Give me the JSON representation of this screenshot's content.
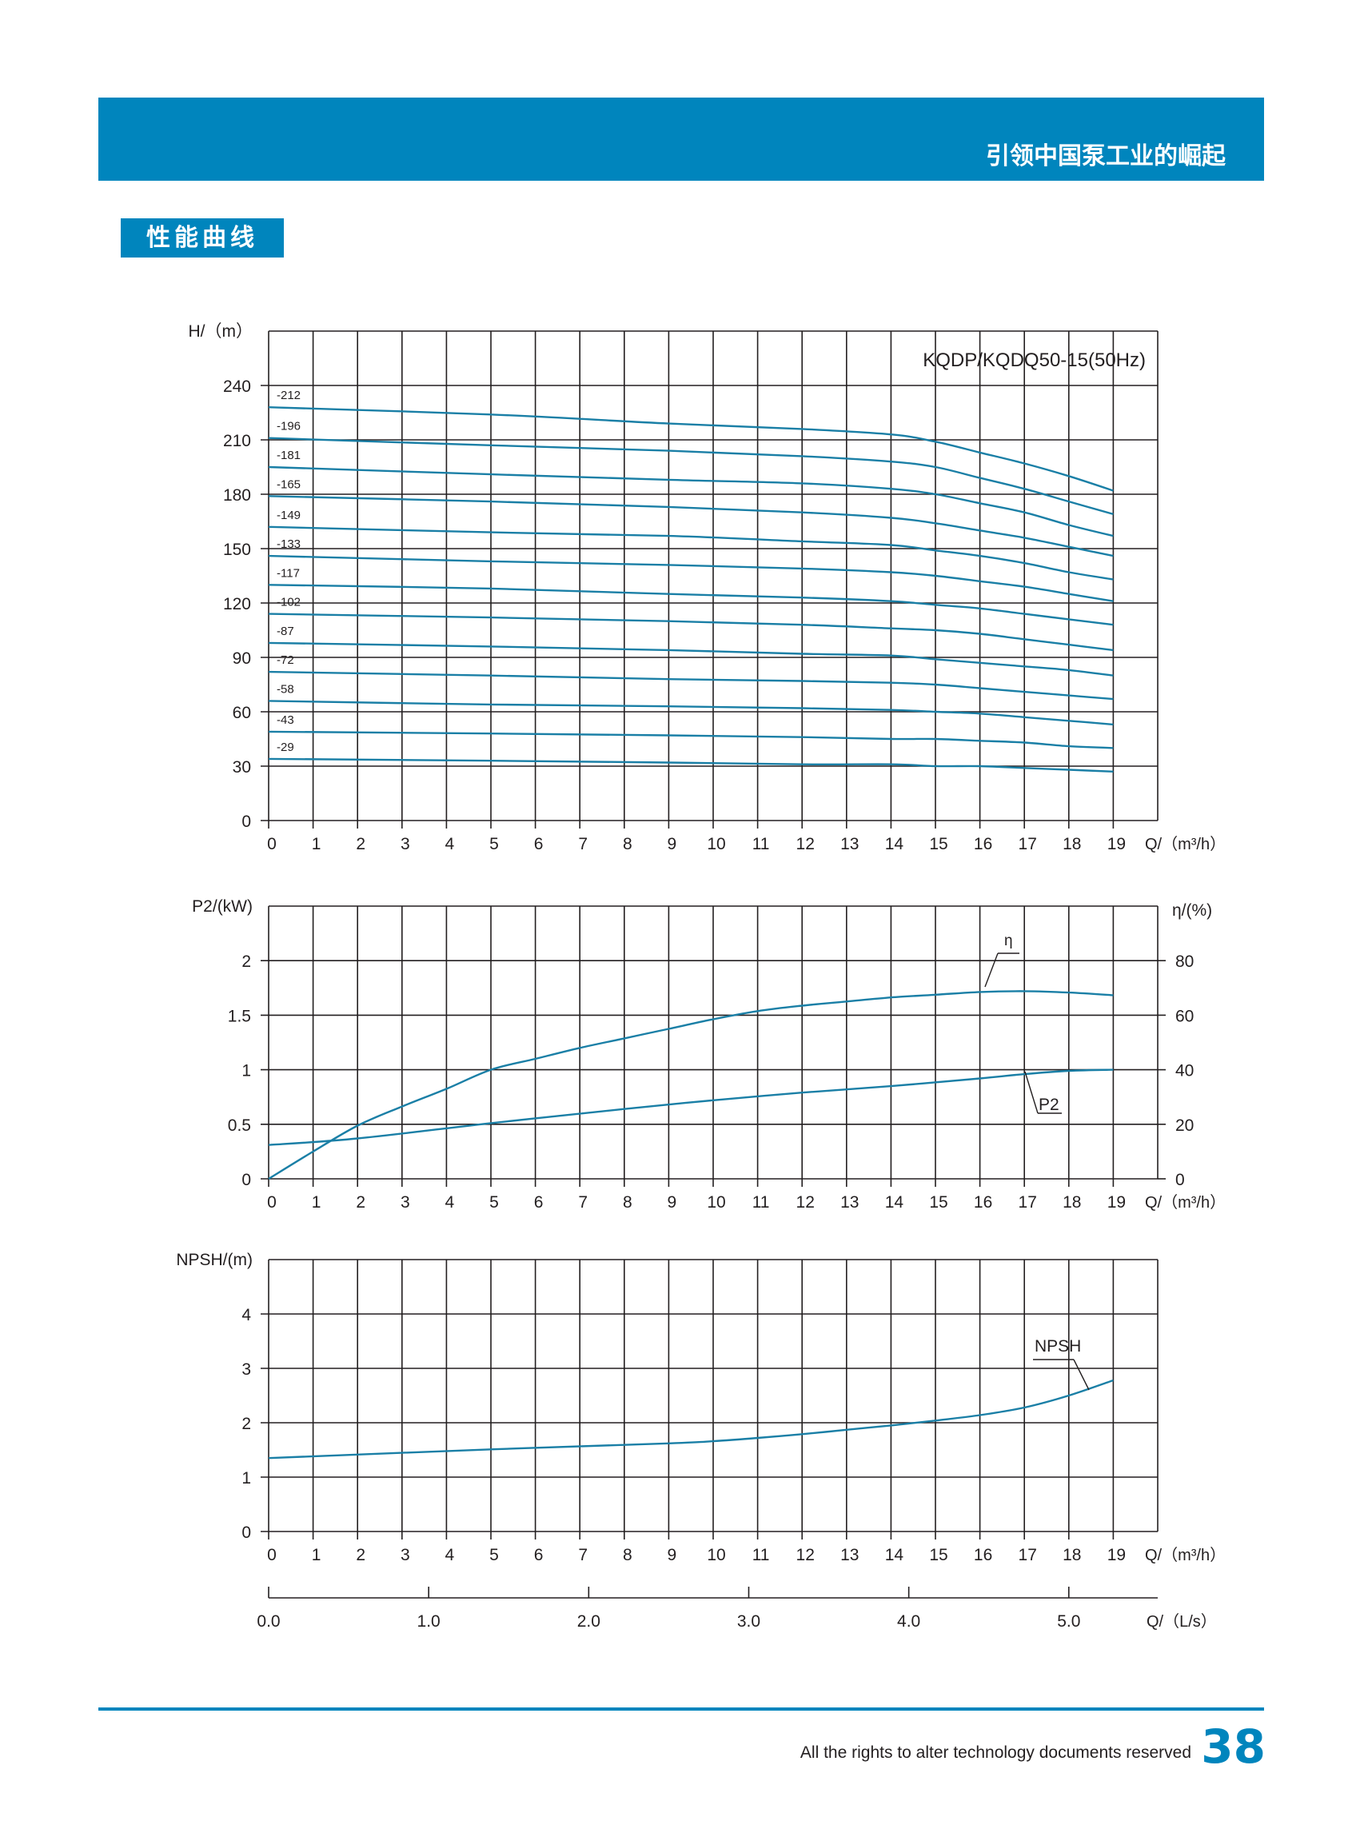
{
  "header": {
    "slogan": "引领中国泵工业的崛起",
    "section": "性能曲线"
  },
  "footer": {
    "note": "All the rights to alter technology documents reserved",
    "page": "38"
  },
  "colors": {
    "brand": "#0085bd",
    "curve": "#1a7fa6",
    "grid": "#231f20"
  },
  "chart_data": [
    {
      "type": "line",
      "name": "head",
      "title": "KQDP/KQDQ50-15(50Hz)",
      "ylabel": "H/（m）",
      "xlabel": "Q/（m³/h）",
      "xlim": [
        0,
        20
      ],
      "ylim": [
        0,
        270
      ],
      "xticks": [
        "0",
        "1",
        "2",
        "3",
        "4",
        "5",
        "6",
        "7",
        "8",
        "9",
        "10",
        "11",
        "12",
        "13",
        "14",
        "15",
        "16",
        "17",
        "18",
        "19"
      ],
      "yticks": [
        "0",
        "30",
        "60",
        "90",
        "120",
        "150",
        "180",
        "210",
        "240"
      ],
      "grid": true,
      "series": [
        {
          "name": "-212",
          "x": [
            0,
            5,
            9,
            12,
            14,
            15,
            16,
            17,
            18,
            19
          ],
          "y": [
            228,
            224,
            219,
            216,
            213,
            209,
            203,
            197,
            190,
            182
          ]
        },
        {
          "name": "-196",
          "x": [
            0,
            5,
            9,
            12,
            14,
            15,
            16,
            17,
            18,
            19
          ],
          "y": [
            211,
            207,
            204,
            201,
            198,
            195,
            189,
            183,
            176,
            169
          ]
        },
        {
          "name": "-181",
          "x": [
            0,
            5,
            9,
            12,
            14,
            15,
            16,
            17,
            18,
            19
          ],
          "y": [
            195,
            191,
            188,
            186,
            183,
            180,
            175,
            170,
            163,
            157
          ]
        },
        {
          "name": "-165",
          "x": [
            0,
            5,
            9,
            12,
            14,
            15,
            16,
            17,
            18,
            19
          ],
          "y": [
            179,
            176,
            173,
            170,
            167,
            164,
            160,
            156,
            151,
            146
          ]
        },
        {
          "name": "-149",
          "x": [
            0,
            5,
            9,
            12,
            14,
            15,
            16,
            17,
            18,
            19
          ],
          "y": [
            162,
            159,
            157,
            154,
            152,
            149,
            146,
            142,
            137,
            133
          ]
        },
        {
          "name": "-133",
          "x": [
            0,
            5,
            9,
            12,
            14,
            15,
            16,
            17,
            18,
            19
          ],
          "y": [
            146,
            143,
            141,
            139,
            137,
            135,
            132,
            129,
            125,
            121
          ]
        },
        {
          "name": "-117",
          "x": [
            0,
            5,
            9,
            12,
            14,
            15,
            16,
            17,
            18,
            19
          ],
          "y": [
            130,
            128,
            125,
            123,
            121,
            119,
            117,
            114,
            111,
            108
          ]
        },
        {
          "name": "-102",
          "x": [
            0,
            5,
            9,
            12,
            14,
            15,
            16,
            17,
            18,
            19
          ],
          "y": [
            114,
            112,
            110,
            108,
            106,
            105,
            103,
            100,
            97,
            94
          ]
        },
        {
          "name": "-87",
          "x": [
            0,
            5,
            9,
            12,
            14,
            15,
            16,
            17,
            18,
            19
          ],
          "y": [
            98,
            96,
            94,
            92,
            91,
            89,
            87,
            85,
            83,
            80
          ]
        },
        {
          "name": "-72",
          "x": [
            0,
            5,
            9,
            12,
            14,
            15,
            16,
            17,
            18,
            19
          ],
          "y": [
            82,
            80,
            78,
            77,
            76,
            75,
            73,
            71,
            69,
            67
          ]
        },
        {
          "name": "-58",
          "x": [
            0,
            5,
            9,
            12,
            14,
            15,
            16,
            17,
            18,
            19
          ],
          "y": [
            66,
            64,
            63,
            62,
            61,
            60,
            59,
            57,
            55,
            53
          ]
        },
        {
          "name": "-43",
          "x": [
            0,
            5,
            9,
            12,
            14,
            15,
            16,
            17,
            18,
            19
          ],
          "y": [
            49,
            48,
            47,
            46,
            45,
            45,
            44,
            43,
            41,
            40
          ]
        },
        {
          "name": "-29",
          "x": [
            0,
            5,
            9,
            12,
            14,
            15,
            16,
            17,
            18,
            19
          ],
          "y": [
            34,
            33,
            32,
            31,
            31,
            30,
            30,
            29,
            28,
            27
          ]
        }
      ]
    },
    {
      "type": "line",
      "name": "power-efficiency",
      "ylabel": "P2/(kW)",
      "y2label": "η/(%)",
      "xlabel": "Q/（m³/h）",
      "xlim": [
        0,
        20
      ],
      "ylim": [
        0,
        2.5
      ],
      "y2lim": [
        0,
        100
      ],
      "xticks": [
        "0",
        "1",
        "2",
        "3",
        "4",
        "5",
        "6",
        "7",
        "8",
        "9",
        "10",
        "11",
        "12",
        "13",
        "14",
        "15",
        "16",
        "17",
        "18",
        "19"
      ],
      "yticks": [
        "0",
        "0.5",
        "1",
        "1.5",
        "2"
      ],
      "y2ticks": [
        "0",
        "20",
        "40",
        "60",
        "80"
      ],
      "grid": true,
      "series": [
        {
          "name": "η",
          "axis": "y2",
          "x": [
            0,
            1,
            2,
            3,
            4,
            5,
            6,
            7,
            8,
            9,
            10,
            11,
            12,
            13,
            14,
            15,
            16,
            17,
            18,
            19
          ],
          "y": [
            0,
            10,
            19.5,
            26.5,
            33,
            40,
            44,
            48,
            51.5,
            55,
            58.5,
            61.5,
            63.5,
            65,
            66.5,
            67.5,
            68.5,
            68.8,
            68.3,
            67.3
          ]
        },
        {
          "name": "P2",
          "axis": "y",
          "x": [
            0,
            2,
            5,
            8,
            10,
            12,
            14,
            16,
            17,
            18,
            19
          ],
          "y": [
            0.31,
            0.37,
            0.51,
            0.64,
            0.72,
            0.79,
            0.85,
            0.92,
            0.96,
            0.99,
            1.0
          ]
        }
      ]
    },
    {
      "type": "line",
      "name": "npsh",
      "ylabel": "NPSH/(m)",
      "xlabel": "Q/（m³/h）",
      "x2label": "Q/（L/s）",
      "xlim": [
        0,
        20
      ],
      "ylim": [
        0,
        5
      ],
      "xticks": [
        "0",
        "1",
        "2",
        "3",
        "4",
        "5",
        "6",
        "7",
        "8",
        "9",
        "10",
        "11",
        "12",
        "13",
        "14",
        "15",
        "16",
        "17",
        "18",
        "19"
      ],
      "yticks": [
        "0",
        "1",
        "2",
        "3",
        "4"
      ],
      "x2ticks": [
        "0.0",
        "1.0",
        "2.0",
        "3.0",
        "4.0",
        "5.0"
      ],
      "grid": true,
      "series": [
        {
          "name": "NPSH",
          "x": [
            0,
            5,
            9,
            10,
            11,
            12,
            13,
            14,
            15,
            16,
            17,
            18,
            19
          ],
          "y": [
            1.35,
            1.51,
            1.62,
            1.66,
            1.72,
            1.79,
            1.87,
            1.95,
            2.04,
            2.14,
            2.28,
            2.5,
            2.78
          ]
        }
      ]
    }
  ]
}
